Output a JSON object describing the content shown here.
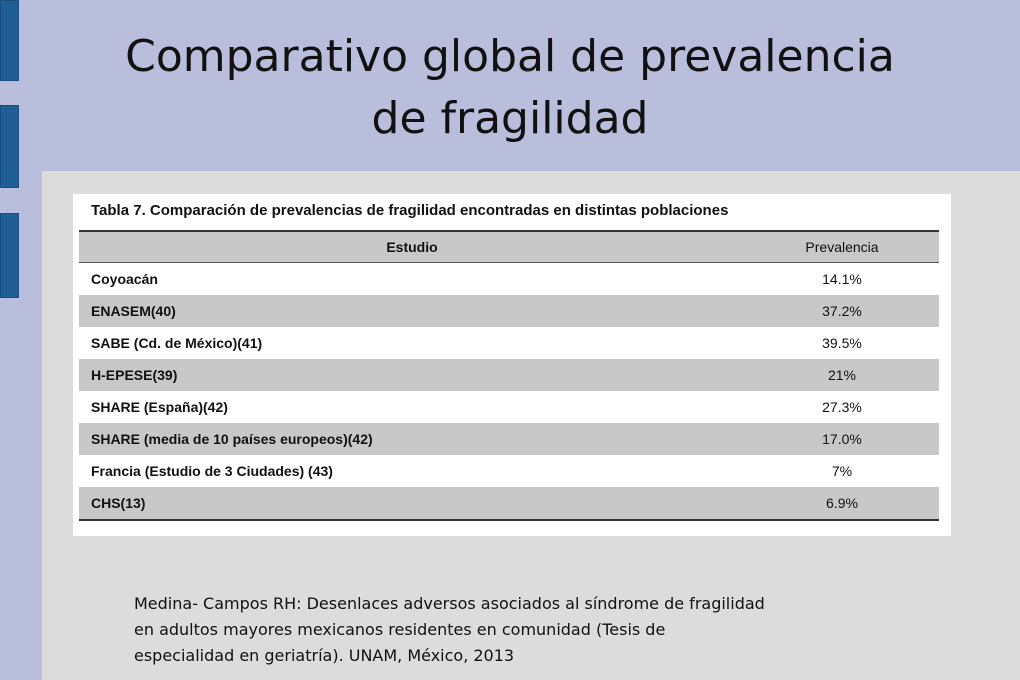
{
  "slide": {
    "title_line1": "Comparativo global de prevalencia",
    "title_line2": "de fragilidad"
  },
  "table": {
    "caption": "Tabla 7. Comparación de prevalencias de fragilidad encontradas en distintas poblaciones",
    "headers": {
      "study": "Estudio",
      "prevalence": "Prevalencia"
    },
    "rows": [
      {
        "study": "Coyoacán",
        "prevalence": "14.1%"
      },
      {
        "study": "ENASEM(40)",
        "prevalence": "37.2%"
      },
      {
        "study": "SABE (Cd. de México)(41)",
        "prevalence": "39.5%"
      },
      {
        "study": "H-EPESE(39)",
        "prevalence": "21%"
      },
      {
        "study": "SHARE (España)(42)",
        "prevalence": "27.3%"
      },
      {
        "study": "SHARE (media de 10 países europeos)(42)",
        "prevalence": "17.0%"
      },
      {
        "study": "Francia (Estudio de 3 Ciudades) (43)",
        "prevalence": "7%"
      },
      {
        "study": "CHS(13)",
        "prevalence": "6.9%"
      }
    ]
  },
  "citation": {
    "line1": "Medina- Campos RH: Desenlaces adversos asociados al síndrome de fragilidad",
    "line2": "en adultos mayores mexicanos residentes en comunidad (Tesis de",
    "line3": "especialidad en geriatría). UNAM, México, 2013"
  },
  "colors": {
    "background": "#b8bedc",
    "accent": "#1f5f95",
    "panel": "#dcdcdc",
    "row_shade": "#c8c8c8"
  }
}
